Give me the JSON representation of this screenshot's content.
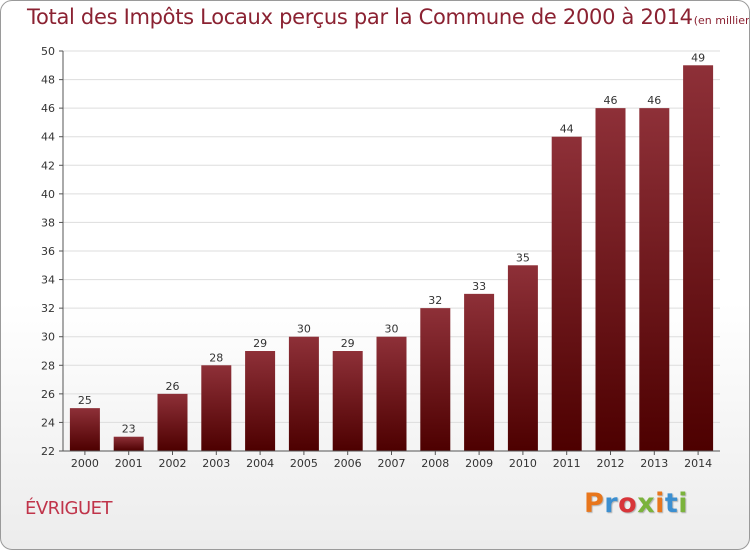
{
  "page": {
    "title": "Total des Impôts Locaux perçus par la Commune de 2000 à 2014",
    "unit": "(en milliers d'€)",
    "commune": "ÉVRIGUET",
    "brand": "Proxiti"
  },
  "colors": {
    "title": "#8b2232",
    "commune": "#c0344a",
    "bar_top": "#8e3038",
    "bar_bottom": "#4d0000",
    "grid": "#dddddd",
    "axis": "#555555",
    "brand_letters": [
      "#e8761c",
      "#3c8fd0",
      "#d8353a",
      "#7bb33c",
      "#e8761c",
      "#3c8fd0",
      "#7bb33c"
    ]
  },
  "chart_data": {
    "type": "bar",
    "title": "Total des Impôts Locaux perçus par la Commune de 2000 à 2014",
    "subtitle": "(en milliers d'€)",
    "xlabel": "",
    "ylabel": "",
    "categories": [
      "2000",
      "2001",
      "2002",
      "2003",
      "2004",
      "2005",
      "2006",
      "2007",
      "2008",
      "2009",
      "2010",
      "2011",
      "2012",
      "2013",
      "2014"
    ],
    "values": [
      25,
      23,
      26,
      28,
      29,
      30,
      29,
      30,
      32,
      33,
      35,
      44,
      46,
      46,
      49
    ],
    "ylim": [
      22,
      50
    ],
    "yticks": [
      22,
      24,
      26,
      28,
      30,
      32,
      34,
      36,
      38,
      40,
      42,
      44,
      46,
      48,
      50
    ],
    "grid": true,
    "legend": "none"
  }
}
